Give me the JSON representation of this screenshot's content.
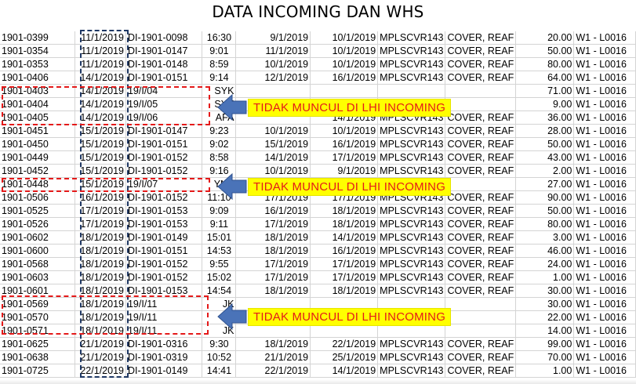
{
  "title": "DATA INCOMING DAN WHS",
  "colors": {
    "box_red": "#e41919",
    "box_blue": "#1f3864",
    "arrow": "#4a73b8",
    "label_bg": "#ffff00",
    "label_text": "#e41919"
  },
  "rows": [
    {
      "id": "1901-0399",
      "date": "11/1/2019",
      "doc": "DI-1901-0098",
      "time": "16:30",
      "d2": "9/1/2019",
      "d3": "10/1/2019",
      "part": "MPLSCVR143",
      "desc": "COVER, REAF",
      "qty": "20.00",
      "loc": "W1 - L0016"
    },
    {
      "id": "1901-0354",
      "date": "11/1/2019",
      "doc": "DI-1901-0147",
      "time": "9:01",
      "d2": "11/1/2019",
      "d3": "10/1/2019",
      "part": "MPLSCVR143",
      "desc": "COVER, REAF",
      "qty": "50.00",
      "loc": "W1 - L0016"
    },
    {
      "id": "1901-0353",
      "date": "11/1/2019",
      "doc": "DI-1901-0148",
      "time": "8:59",
      "d2": "10/1/2019",
      "d3": "10/1/2019",
      "part": "MPLSCVR143",
      "desc": "COVER, REAF",
      "qty": "80.00",
      "loc": "W1 - L0016"
    },
    {
      "id": "1901-0406",
      "date": "14/1/2019",
      "doc": "DI-1901-0151",
      "time": "9:14",
      "d2": "12/1/2019",
      "d3": "16/1/2019",
      "part": "MPLSCVR143",
      "desc": "COVER, REAF",
      "qty": "64.00",
      "loc": "W1 - L0016"
    },
    {
      "id": "1901-0403",
      "date": "14/1/2019",
      "doc": "19/I/04",
      "time": "SYK",
      "d2": "",
      "d3": "",
      "part": "",
      "desc": "",
      "qty": "71.00",
      "loc": "W1 - L0016"
    },
    {
      "id": "1901-0404",
      "date": "14/1/2019",
      "doc": "19/I/05",
      "time": "SYK",
      "d2": "",
      "d3": "",
      "part": "",
      "desc": "",
      "qty": "9.00",
      "loc": "W1 - L0016"
    },
    {
      "id": "1901-0405",
      "date": "14/1/2019",
      "doc": "19/I/06",
      "time": "AFA",
      "d2": "",
      "d3": "14/1/2019",
      "part": "MPLSCVR143",
      "desc": "COVER, REAF",
      "qty": "36.00",
      "loc": "W1 - L0016"
    },
    {
      "id": "1901-0451",
      "date": "15/1/2019",
      "doc": "DI-1901-0147",
      "time": "9:23",
      "d2": "10/1/2019",
      "d3": "10/1/2019",
      "part": "MPLSCVR143",
      "desc": "COVER, REAF",
      "qty": "28.00",
      "loc": "W1 - L0016"
    },
    {
      "id": "1901-0450",
      "date": "15/1/2019",
      "doc": "DI-1901-0151",
      "time": "9:02",
      "d2": "15/1/2019",
      "d3": "16/1/2019",
      "part": "MPLSCVR143",
      "desc": "COVER, REAF",
      "qty": "50.00",
      "loc": "W1 - L0016"
    },
    {
      "id": "1901-0449",
      "date": "15/1/2019",
      "doc": "DI-1901-0152",
      "time": "8:58",
      "d2": "14/1/2019",
      "d3": "17/1/2019",
      "part": "MPLSCVR143",
      "desc": "COVER, REAF",
      "qty": "43.00",
      "loc": "W1 - L0016"
    },
    {
      "id": "1901-0452",
      "date": "15/1/2019",
      "doc": "DI-1901-0152",
      "time": "9:16",
      "d2": "10/1/2019",
      "d3": "9/1/2019",
      "part": "MPLSCVR143",
      "desc": "COVER, REAF",
      "qty": "2.00",
      "loc": "W1 - L0016"
    },
    {
      "id": "1901-0448",
      "date": "15/1/2019",
      "doc": "19/I/07",
      "time": "YNS",
      "d2": "",
      "d3": "",
      "part": "",
      "desc": "",
      "qty": "27.00",
      "loc": "W1 - L0016"
    },
    {
      "id": "1901-0506",
      "date": "16/1/2019",
      "doc": "DI-1901-0152",
      "time": "11:10",
      "d2": "17/1/2019",
      "d3": "17/1/2019",
      "part": "MPLSCVR143",
      "desc": "COVER, REAF",
      "qty": "90.00",
      "loc": "W1 - L0016"
    },
    {
      "id": "1901-0525",
      "date": "17/1/2019",
      "doc": "DI-1901-0153",
      "time": "9:09",
      "d2": "16/1/2019",
      "d3": "18/1/2019",
      "part": "MPLSCVR143",
      "desc": "COVER, REAF",
      "qty": "50.00",
      "loc": "W1 - L0016"
    },
    {
      "id": "1901-0526",
      "date": "17/1/2019",
      "doc": "DI-1901-0153",
      "time": "9:11",
      "d2": "17/1/2019",
      "d3": "18/1/2019",
      "part": "MPLSCVR143",
      "desc": "COVER, REAF",
      "qty": "80.00",
      "loc": "W1 - L0016"
    },
    {
      "id": "1901-0602",
      "date": "18/1/2019",
      "doc": "DI-1901-0149",
      "time": "15:01",
      "d2": "18/1/2019",
      "d3": "14/1/2019",
      "part": "MPLSCVR143",
      "desc": "COVER, REAF",
      "qty": "3.00",
      "loc": "W1 - L0016"
    },
    {
      "id": "1901-0600",
      "date": "18/1/2019",
      "doc": "DI-1901-0151",
      "time": "14:53",
      "d2": "18/1/2019",
      "d3": "16/1/2019",
      "part": "MPLSCVR143",
      "desc": "COVER, REAF",
      "qty": "46.00",
      "loc": "W1 - L0016"
    },
    {
      "id": "1901-0568",
      "date": "18/1/2019",
      "doc": "DI-1901-0152",
      "time": "9:55",
      "d2": "17/1/2019",
      "d3": "17/1/2019",
      "part": "MPLSCVR143",
      "desc": "COVER, REAF",
      "qty": "24.00",
      "loc": "W1 - L0016"
    },
    {
      "id": "1901-0603",
      "date": "18/1/2019",
      "doc": "DI-1901-0152",
      "time": "15:02",
      "d2": "17/1/2019",
      "d3": "17/1/2019",
      "part": "MPLSCVR143",
      "desc": "COVER, REAF",
      "qty": "1.00",
      "loc": "W1 - L0016"
    },
    {
      "id": "1901-0601",
      "date": "18/1/2019",
      "doc": "DI-1901-0153",
      "time": "14:54",
      "d2": "18/1/2019",
      "d3": "18/1/2019",
      "part": "MPLSCVR143",
      "desc": "COVER, REAF",
      "qty": "30.00",
      "loc": "W1 - L0016"
    },
    {
      "id": "1901-0569",
      "date": "18/1/2019",
      "doc": "19/I/11",
      "time": "JK",
      "d2": "",
      "d3": "",
      "part": "",
      "desc": "",
      "qty": "30.00",
      "loc": "W1 - L0016"
    },
    {
      "id": "1901-0570",
      "date": "18/1/2019",
      "doc": "19/I/11",
      "time": "JK",
      "d2": "",
      "d3": "",
      "part": "",
      "desc": "",
      "qty": "22.00",
      "loc": "W1 - L0016"
    },
    {
      "id": "1901-0571",
      "date": "18/1/2019",
      "doc": "19/I/11",
      "time": "JK",
      "d2": "",
      "d3": "",
      "part": "",
      "desc": "",
      "qty": "14.00",
      "loc": "W1 - L0016"
    },
    {
      "id": "1901-0625",
      "date": "21/1/2019",
      "doc": "DI-1901-0316",
      "time": "9:30",
      "d2": "18/1/2019",
      "d3": "22/1/2019",
      "part": "MPLSCVR143",
      "desc": "COVER, REAF",
      "qty": "99.00",
      "loc": "W1 - L0016"
    },
    {
      "id": "1901-0638",
      "date": "21/1/2019",
      "doc": "DI-1901-0319",
      "time": "10:52",
      "d2": "21/1/2019",
      "d3": "25/1/2019",
      "part": "MPLSCVR143",
      "desc": "COVER, REAF",
      "qty": "70.00",
      "loc": "W1 - L0016"
    },
    {
      "id": "1901-0725",
      "date": "22/1/2019",
      "doc": "DI-1901-0149",
      "time": "14:41",
      "d2": "22/1/2019",
      "d3": "14/1/2019",
      "part": "MPLSCVR143",
      "desc": "COVER, REAF",
      "qty": "1.00",
      "loc": "W1 - L0016"
    }
  ],
  "callouts": [
    {
      "label": "TIDAK MUNCUL DI LHI INCOMING"
    },
    {
      "label": "TIDAK MUNCUL DI LHI INCOMING"
    },
    {
      "label": "TIDAK MUNCUL DI LHI INCOMING"
    }
  ]
}
